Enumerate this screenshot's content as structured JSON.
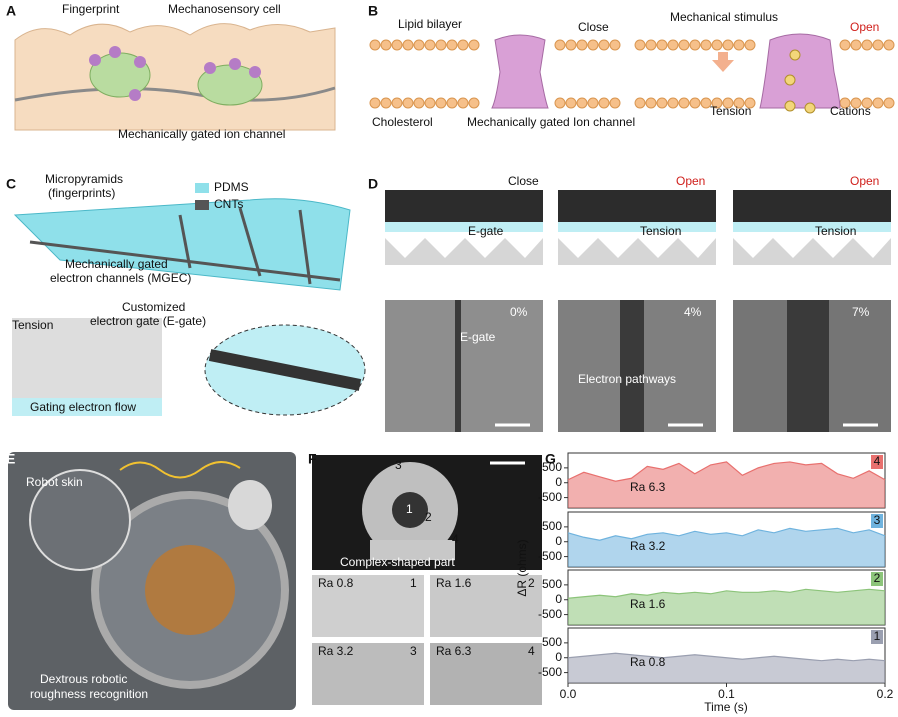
{
  "panels": {
    "A": {
      "label": "A",
      "fingerprint": "Fingerprint",
      "cell": "Mechanosensory cell",
      "channel": "Mechanically gated ion channel"
    },
    "B": {
      "label": "B",
      "bilayer": "Lipid bilayer",
      "close": "Close",
      "cholesterol": "Cholesterol",
      "channel": "Mechanically gated Ion channel",
      "stimulus": "Mechanical stimulus",
      "open": "Open",
      "tension": "Tension",
      "cations": "Cations"
    },
    "C": {
      "label": "C",
      "micro": [
        "Micropyramids",
        "(fingerprints)"
      ],
      "pdms": "PDMS",
      "cnts": "CNTs",
      "mgec": [
        "Mechanically gated",
        "electron channels (MGEC)"
      ],
      "egate": [
        "Customized",
        "electron gate (E-gate)"
      ],
      "tension": "Tension",
      "flow": "Gating electron flow"
    },
    "D": {
      "label": "D",
      "states": [
        "Close",
        "Open",
        "Open"
      ],
      "egate": "E-gate",
      "tension": [
        "Tension",
        "Tension"
      ],
      "strains": [
        "0%",
        "4%",
        "7%"
      ],
      "sem_egate": "E-gate",
      "pathways": "Electron pathways"
    },
    "E": {
      "label": "E",
      "skin": "Robot skin",
      "recog": [
        "Dextrous robotic",
        "roughness recognition"
      ]
    },
    "F": {
      "label": "F",
      "part_ids": [
        "3",
        "1",
        "2",
        "4"
      ],
      "part": "Complex-shaped part",
      "samples": [
        [
          "Ra 0.8",
          "1"
        ],
        [
          "Ra 1.6",
          "2"
        ],
        [
          "Ra 3.2",
          "3"
        ],
        [
          "Ra 6.3",
          "4"
        ]
      ]
    },
    "G": {
      "label": "G",
      "y_label": "ΔR (ohms)",
      "x_label": "Time (s)"
    }
  },
  "chart_data": [
    {
      "type": "area",
      "annotation": "Ra 6.3",
      "tag": "4",
      "color": "#e8706e",
      "ylim": [
        -850,
        1000
      ],
      "yticks": [
        -500,
        0,
        500
      ],
      "xlim": [
        0,
        0.2
      ],
      "x": [
        0,
        0.01,
        0.02,
        0.03,
        0.04,
        0.05,
        0.06,
        0.07,
        0.08,
        0.09,
        0.1,
        0.11,
        0.12,
        0.13,
        0.14,
        0.15,
        0.16,
        0.17,
        0.18,
        0.19,
        0.2
      ],
      "values": [
        100,
        350,
        200,
        50,
        150,
        550,
        450,
        650,
        300,
        600,
        700,
        250,
        500,
        650,
        700,
        600,
        650,
        300,
        150,
        400,
        100
      ]
    },
    {
      "type": "area",
      "annotation": "Ra 3.2",
      "tag": "3",
      "color": "#6fb3de",
      "ylim": [
        -850,
        1000
      ],
      "yticks": [
        -500,
        0,
        500
      ],
      "xlim": [
        0,
        0.2
      ],
      "x": [
        0,
        0.01,
        0.02,
        0.03,
        0.04,
        0.05,
        0.06,
        0.07,
        0.08,
        0.09,
        0.1,
        0.11,
        0.12,
        0.13,
        0.14,
        0.15,
        0.16,
        0.17,
        0.18,
        0.19,
        0.2
      ],
      "values": [
        300,
        150,
        50,
        200,
        100,
        250,
        300,
        200,
        350,
        250,
        300,
        200,
        400,
        300,
        450,
        350,
        400,
        450,
        300,
        400,
        200
      ]
    },
    {
      "type": "area",
      "annotation": "Ra 1.6",
      "tag": "2",
      "color": "#8cc47a",
      "ylim": [
        -850,
        1000
      ],
      "yticks": [
        -500,
        0,
        500
      ],
      "xlim": [
        0,
        0.2
      ],
      "x": [
        0,
        0.01,
        0.02,
        0.03,
        0.04,
        0.05,
        0.06,
        0.07,
        0.08,
        0.09,
        0.1,
        0.11,
        0.12,
        0.13,
        0.14,
        0.15,
        0.16,
        0.17,
        0.18,
        0.19,
        0.2
      ],
      "values": [
        50,
        100,
        150,
        100,
        200,
        150,
        250,
        200,
        250,
        200,
        300,
        250,
        250,
        300,
        250,
        350,
        300,
        250,
        300,
        350,
        300
      ]
    },
    {
      "type": "area",
      "annotation": "Ra 0.8",
      "tag": "1",
      "color": "#9a9fb0",
      "ylim": [
        -850,
        1000
      ],
      "yticks": [
        -500,
        0,
        500
      ],
      "xlim": [
        0,
        0.2
      ],
      "xticks": [
        {
          "value": 0,
          "label": "0.0"
        },
        0.1,
        0.2
      ],
      "x": [
        0,
        0.01,
        0.02,
        0.03,
        0.04,
        0.05,
        0.06,
        0.07,
        0.08,
        0.09,
        0.1,
        0.11,
        0.12,
        0.13,
        0.14,
        0.15,
        0.16,
        0.17,
        0.18,
        0.19,
        0.2
      ],
      "values": [
        0,
        50,
        100,
        150,
        100,
        50,
        0,
        50,
        100,
        50,
        0,
        -50,
        0,
        50,
        0,
        -50,
        -100,
        -50,
        -100,
        -50,
        -100
      ]
    }
  ]
}
